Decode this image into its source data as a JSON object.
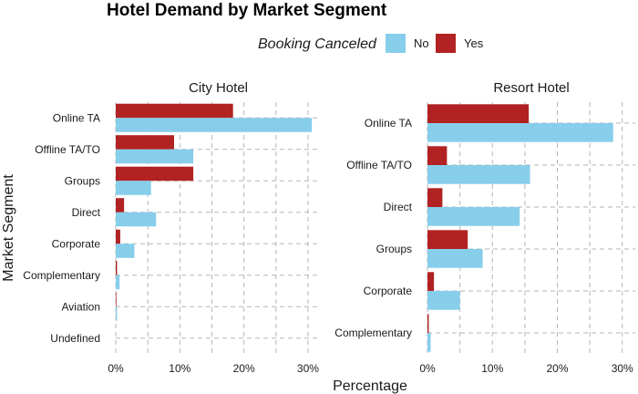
{
  "chart_data": {
    "type": "bar",
    "orientation": "horizontal",
    "title": "Hotel Demand by Market Segment",
    "xlabel": "Percentage",
    "ylabel": "Market Segment",
    "xlim": [
      0,
      32
    ],
    "xticks": [
      0,
      10,
      20,
      30
    ],
    "xtick_labels": [
      "0%",
      "10%",
      "20%",
      "30%"
    ],
    "grid": true,
    "legend": {
      "title": "Booking Canceled",
      "placement": "top",
      "entries": [
        {
          "name": "No",
          "color": "#87ceeb"
        },
        {
          "name": "Yes",
          "color": "#b22222"
        }
      ]
    },
    "facets": [
      {
        "name": "City Hotel",
        "categories": [
          "Online TA",
          "Offline TA/TO",
          "Groups",
          "Direct",
          "Corporate",
          "Complementary",
          "Aviation",
          "Undefined"
        ],
        "series": [
          {
            "name": "Yes",
            "values": [
              18.3,
              9.1,
              12.1,
              1.3,
              0.7,
              0.2,
              0.1,
              0.0
            ]
          },
          {
            "name": "No",
            "values": [
              30.6,
              12.1,
              5.5,
              6.3,
              2.9,
              0.6,
              0.2,
              0.0
            ]
          }
        ]
      },
      {
        "name": "Resort Hotel",
        "categories": [
          "Online TA",
          "Offline TA/TO",
          "Direct",
          "Groups",
          "Corporate",
          "Complementary"
        ],
        "series": [
          {
            "name": "Yes",
            "values": [
              15.6,
              3.0,
              2.3,
              6.2,
              1.0,
              0.2
            ]
          },
          {
            "name": "No",
            "values": [
              28.6,
              15.8,
              14.2,
              8.5,
              5.0,
              0.5
            ]
          }
        ]
      }
    ]
  }
}
